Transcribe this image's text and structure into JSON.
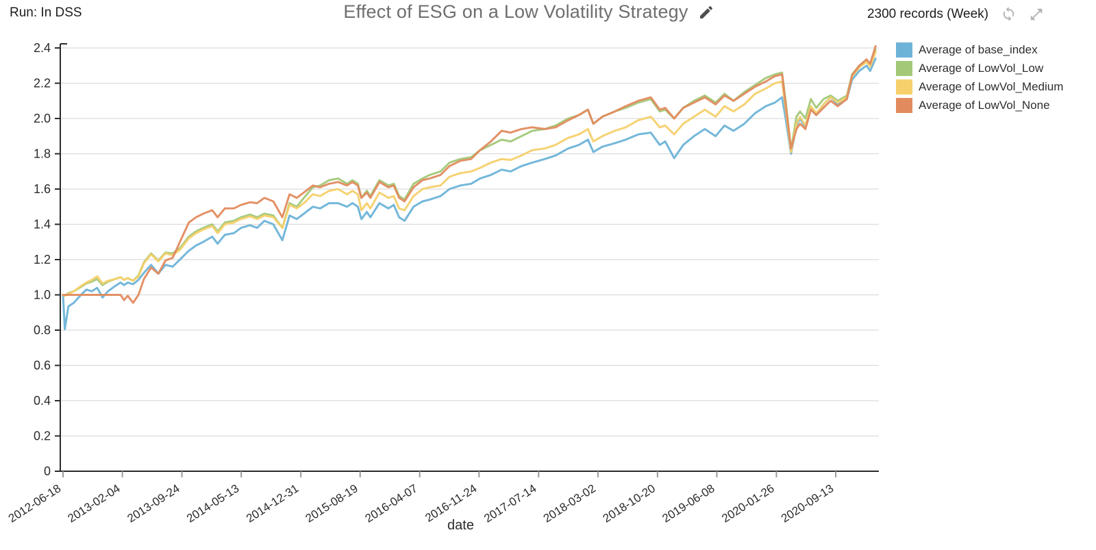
{
  "header": {
    "run_label": "Run: In DSS",
    "title": "Effect of ESG on a Low Volatility Strategy",
    "records_label": "2300 records (Week)"
  },
  "chart_data": {
    "type": "line",
    "title": "Effect of ESG on a Low Volatility Strategy",
    "xlabel": "date",
    "ylabel": "",
    "ylim": [
      0,
      2.4
    ],
    "y_ticks": [
      0,
      0.2,
      0.4,
      0.6,
      0.8,
      1.0,
      1.2,
      1.4,
      1.6,
      1.8,
      2.0,
      2.2,
      2.4
    ],
    "x_tick_labels": [
      "2012-06-18",
      "2013-02-04",
      "2013-09-24",
      "2014-05-13",
      "2014-12-31",
      "2015-08-19",
      "2016-04-07",
      "2016-11-24",
      "2017-07-14",
      "2018-03-02",
      "2018-10-20",
      "2019-06-08",
      "2020-01-26",
      "2020-09-13"
    ],
    "grid": true,
    "legend_position": "top-right",
    "axis_color": "#2a2a2a",
    "grid_color": "#dcdcdc",
    "x": [
      "2012-06-18",
      "2012-06-25",
      "2012-07-09",
      "2012-07-30",
      "2012-08-27",
      "2012-09-17",
      "2012-10-08",
      "2012-10-29",
      "2012-11-19",
      "2012-12-10",
      "2013-01-07",
      "2013-01-28",
      "2013-02-11",
      "2013-02-25",
      "2013-03-18",
      "2013-04-08",
      "2013-04-29",
      "2013-05-27",
      "2013-06-24",
      "2013-07-22",
      "2013-08-19",
      "2013-09-16",
      "2013-10-21",
      "2013-11-18",
      "2013-12-16",
      "2014-01-20",
      "2014-02-10",
      "2014-03-10",
      "2014-04-14",
      "2014-05-12",
      "2014-06-16",
      "2014-07-14",
      "2014-08-11",
      "2014-09-15",
      "2014-10-20",
      "2014-11-17",
      "2014-12-15",
      "2015-01-12",
      "2015-02-16",
      "2015-03-16",
      "2015-04-20",
      "2015-05-25",
      "2015-06-29",
      "2015-07-20",
      "2015-08-10",
      "2015-08-24",
      "2015-09-14",
      "2015-09-28",
      "2015-11-02",
      "2015-12-07",
      "2015-12-28",
      "2016-01-18",
      "2016-02-08",
      "2016-03-14",
      "2016-04-18",
      "2016-05-16",
      "2016-06-27",
      "2016-08-01",
      "2016-09-12",
      "2016-10-24",
      "2016-11-28",
      "2017-01-09",
      "2017-02-20",
      "2017-03-27",
      "2017-05-08",
      "2017-06-19",
      "2017-08-07",
      "2017-09-18",
      "2017-11-06",
      "2017-12-18",
      "2018-01-22",
      "2018-02-12",
      "2018-03-19",
      "2018-05-07",
      "2018-06-18",
      "2018-08-06",
      "2018-09-24",
      "2018-10-29",
      "2018-11-19",
      "2018-12-24",
      "2019-01-28",
      "2019-03-11",
      "2019-04-22",
      "2019-06-03",
      "2019-07-08",
      "2019-08-12",
      "2019-09-23",
      "2019-11-04",
      "2019-12-16",
      "2020-01-20",
      "2020-02-17",
      "2020-03-02",
      "2020-03-23",
      "2020-04-13",
      "2020-04-27",
      "2020-05-18",
      "2020-06-08",
      "2020-06-29",
      "2020-07-27",
      "2020-08-24",
      "2020-09-21",
      "2020-10-26",
      "2020-11-16",
      "2020-12-14",
      "2021-01-11",
      "2021-01-25",
      "2021-02-15"
    ],
    "series": [
      {
        "name": "Average of base_index",
        "color": "#6db3d8",
        "values": [
          1.0,
          0.805,
          0.935,
          0.955,
          1.0,
          1.03,
          1.02,
          1.04,
          0.985,
          1.02,
          1.05,
          1.07,
          1.055,
          1.07,
          1.06,
          1.085,
          1.125,
          1.17,
          1.12,
          1.17,
          1.16,
          1.2,
          1.25,
          1.28,
          1.3,
          1.33,
          1.29,
          1.34,
          1.35,
          1.38,
          1.395,
          1.38,
          1.42,
          1.4,
          1.31,
          1.45,
          1.43,
          1.46,
          1.5,
          1.49,
          1.52,
          1.52,
          1.5,
          1.52,
          1.5,
          1.43,
          1.47,
          1.44,
          1.52,
          1.49,
          1.51,
          1.44,
          1.42,
          1.5,
          1.53,
          1.54,
          1.56,
          1.6,
          1.62,
          1.63,
          1.66,
          1.68,
          1.71,
          1.7,
          1.73,
          1.75,
          1.77,
          1.79,
          1.83,
          1.85,
          1.88,
          1.81,
          1.84,
          1.86,
          1.88,
          1.91,
          1.92,
          1.85,
          1.87,
          1.775,
          1.85,
          1.9,
          1.94,
          1.9,
          1.96,
          1.93,
          1.97,
          2.03,
          2.07,
          2.09,
          2.12,
          2.0,
          1.8,
          1.96,
          2.0,
          1.95,
          2.06,
          2.02,
          2.08,
          2.12,
          2.08,
          2.11,
          2.22,
          2.27,
          2.3,
          2.27,
          2.34
        ]
      },
      {
        "name": "Average of LowVol_Low",
        "color": "#a3c878",
        "values": [
          1.0,
          0.995,
          1.01,
          1.02,
          1.045,
          1.065,
          1.075,
          1.09,
          1.055,
          1.075,
          1.09,
          1.1,
          1.085,
          1.095,
          1.08,
          1.11,
          1.185,
          1.235,
          1.195,
          1.24,
          1.235,
          1.265,
          1.33,
          1.36,
          1.38,
          1.4,
          1.36,
          1.41,
          1.42,
          1.44,
          1.455,
          1.44,
          1.46,
          1.45,
          1.38,
          1.52,
          1.5,
          1.55,
          1.61,
          1.62,
          1.65,
          1.66,
          1.63,
          1.65,
          1.63,
          1.55,
          1.59,
          1.56,
          1.65,
          1.62,
          1.63,
          1.56,
          1.54,
          1.63,
          1.66,
          1.68,
          1.7,
          1.75,
          1.77,
          1.78,
          1.82,
          1.85,
          1.88,
          1.87,
          1.9,
          1.93,
          1.94,
          1.96,
          2.0,
          2.02,
          2.05,
          1.97,
          2.01,
          2.04,
          2.06,
          2.09,
          2.11,
          2.04,
          2.05,
          2.0,
          2.06,
          2.1,
          2.13,
          2.09,
          2.14,
          2.1,
          2.15,
          2.19,
          2.23,
          2.25,
          2.26,
          2.1,
          1.82,
          2.01,
          2.04,
          2.0,
          2.11,
          2.06,
          2.11,
          2.13,
          2.1,
          2.13,
          2.25,
          2.3,
          2.33,
          2.31,
          2.39
        ]
      },
      {
        "name": "Average of LowVol_Medium",
        "color": "#f6d06b",
        "values": [
          1.0,
          0.995,
          1.005,
          1.02,
          1.05,
          1.07,
          1.085,
          1.105,
          1.065,
          1.08,
          1.09,
          1.1,
          1.085,
          1.095,
          1.08,
          1.105,
          1.18,
          1.23,
          1.19,
          1.235,
          1.225,
          1.255,
          1.32,
          1.35,
          1.37,
          1.39,
          1.35,
          1.4,
          1.41,
          1.43,
          1.445,
          1.43,
          1.45,
          1.44,
          1.38,
          1.51,
          1.49,
          1.52,
          1.57,
          1.56,
          1.59,
          1.6,
          1.57,
          1.59,
          1.57,
          1.48,
          1.52,
          1.49,
          1.58,
          1.55,
          1.56,
          1.49,
          1.48,
          1.56,
          1.6,
          1.61,
          1.62,
          1.67,
          1.69,
          1.7,
          1.72,
          1.75,
          1.77,
          1.765,
          1.79,
          1.82,
          1.83,
          1.85,
          1.89,
          1.91,
          1.94,
          1.87,
          1.9,
          1.93,
          1.95,
          1.99,
          2.01,
          1.95,
          1.96,
          1.91,
          1.97,
          2.01,
          2.05,
          2.01,
          2.07,
          2.04,
          2.08,
          2.14,
          2.17,
          2.2,
          2.21,
          2.06,
          1.81,
          1.97,
          2.01,
          1.96,
          2.07,
          2.03,
          2.08,
          2.12,
          2.09,
          2.12,
          2.24,
          2.29,
          2.32,
          2.295,
          2.375
        ]
      },
      {
        "name": "Average of LowVol_None",
        "color": "#e28b5f",
        "values": [
          1.0,
          1.0,
          1.0,
          1.0,
          1.0,
          1.0,
          1.0,
          1.0,
          1.0,
          1.0,
          1.0,
          1.0,
          0.97,
          0.995,
          0.955,
          1.0,
          1.09,
          1.155,
          1.12,
          1.195,
          1.21,
          1.3,
          1.41,
          1.44,
          1.46,
          1.48,
          1.44,
          1.49,
          1.49,
          1.51,
          1.525,
          1.52,
          1.55,
          1.53,
          1.44,
          1.57,
          1.55,
          1.58,
          1.62,
          1.61,
          1.63,
          1.64,
          1.62,
          1.64,
          1.62,
          1.55,
          1.58,
          1.55,
          1.64,
          1.61,
          1.62,
          1.55,
          1.53,
          1.61,
          1.65,
          1.66,
          1.68,
          1.73,
          1.76,
          1.77,
          1.82,
          1.87,
          1.93,
          1.92,
          1.94,
          1.95,
          1.94,
          1.95,
          1.99,
          2.02,
          2.05,
          1.97,
          2.01,
          2.04,
          2.07,
          2.1,
          2.12,
          2.05,
          2.06,
          2.0,
          2.06,
          2.09,
          2.12,
          2.08,
          2.13,
          2.1,
          2.14,
          2.18,
          2.21,
          2.24,
          2.25,
          2.08,
          1.83,
          1.94,
          1.97,
          1.94,
          2.05,
          2.02,
          2.06,
          2.1,
          2.07,
          2.11,
          2.245,
          2.3,
          2.335,
          2.31,
          2.41
        ]
      }
    ]
  }
}
